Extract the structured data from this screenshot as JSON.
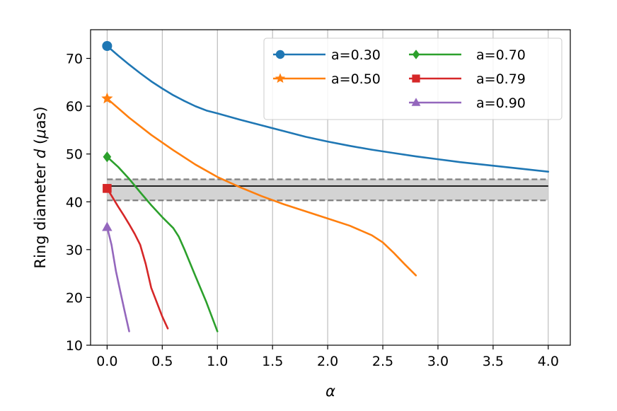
{
  "chart_data": {
    "type": "line",
    "title": "",
    "xlabel": "α",
    "ylabel_prefix": "Ring diameter ",
    "ylabel_var": "d",
    "ylabel_unit_open": " (",
    "ylabel_unit_mu": "μ",
    "ylabel_unit_rest": "as)",
    "xlim": [
      -0.15,
      4.2
    ],
    "ylim": [
      10,
      76
    ],
    "xticks": [
      0.0,
      0.5,
      1.0,
      1.5,
      2.0,
      2.5,
      3.0,
      3.5,
      4.0
    ],
    "xtick_labels": [
      "0.0",
      "0.5",
      "1.0",
      "1.5",
      "2.0",
      "2.5",
      "3.0",
      "3.5",
      "4.0"
    ],
    "yticks": [
      10,
      20,
      30,
      40,
      50,
      60,
      70
    ],
    "ytick_labels": [
      "10",
      "20",
      "30",
      "40",
      "50",
      "60",
      "70"
    ],
    "grid": "vertical",
    "legend_position": "top-right",
    "band": {
      "center": 43.3,
      "lower": 40.3,
      "upper": 44.7,
      "x_range": [
        0.0,
        4.0
      ],
      "fill": "#d3d3d3",
      "center_color": "#222222",
      "bound_color": "#808080"
    },
    "series": [
      {
        "name": "a=0.30",
        "color": "#1f77b4",
        "marker": "circle",
        "x": [
          0.0,
          0.1,
          0.2,
          0.3,
          0.4,
          0.5,
          0.6,
          0.7,
          0.8,
          0.9,
          1.0,
          1.2,
          1.4,
          1.6,
          1.8,
          2.0,
          2.2,
          2.4,
          2.6,
          2.8,
          3.0,
          3.2,
          3.4,
          3.6,
          3.8,
          4.0
        ],
        "y": [
          72.6,
          70.6,
          68.7,
          66.9,
          65.2,
          63.7,
          62.3,
          61.1,
          60.0,
          59.1,
          58.5,
          57.2,
          56.0,
          54.8,
          53.6,
          52.6,
          51.7,
          50.9,
          50.2,
          49.5,
          48.9,
          48.3,
          47.8,
          47.3,
          46.8,
          46.3
        ]
      },
      {
        "name": "a=0.50",
        "color": "#ff7f0e",
        "marker": "star",
        "x": [
          0.0,
          0.2,
          0.4,
          0.6,
          0.8,
          1.0,
          1.2,
          1.4,
          1.6,
          1.8,
          2.0,
          2.2,
          2.4,
          2.5,
          2.6,
          2.7,
          2.8
        ],
        "y": [
          61.6,
          57.6,
          54.0,
          50.8,
          47.8,
          45.2,
          43.1,
          41.2,
          39.5,
          38.0,
          36.5,
          35.0,
          33.0,
          31.5,
          29.3,
          26.9,
          24.6
        ]
      },
      {
        "name": "a=0.70",
        "color": "#2ca02c",
        "marker": "diamond",
        "x": [
          0.0,
          0.1,
          0.2,
          0.3,
          0.4,
          0.5,
          0.6,
          0.65,
          0.7,
          0.8,
          0.9,
          1.0
        ],
        "y": [
          49.4,
          47.3,
          44.8,
          42.0,
          39.3,
          36.8,
          34.5,
          32.7,
          30.1,
          24.5,
          19.0,
          12.9
        ]
      },
      {
        "name": "a=0.79",
        "color": "#d62728",
        "marker": "square",
        "x": [
          0.0,
          0.05,
          0.1,
          0.15,
          0.2,
          0.25,
          0.3,
          0.35,
          0.4,
          0.45,
          0.5,
          0.55
        ],
        "y": [
          42.8,
          40.9,
          39.0,
          37.2,
          35.3,
          33.3,
          31.0,
          27.0,
          22.0,
          19.0,
          16.0,
          13.5
        ]
      },
      {
        "name": "a=0.90",
        "color": "#9467bd",
        "marker": "triangle",
        "x": [
          0.0,
          0.04,
          0.08,
          0.12,
          0.16,
          0.2
        ],
        "y": [
          34.7,
          31.0,
          25.5,
          21.2,
          17.0,
          12.9
        ]
      }
    ]
  }
}
